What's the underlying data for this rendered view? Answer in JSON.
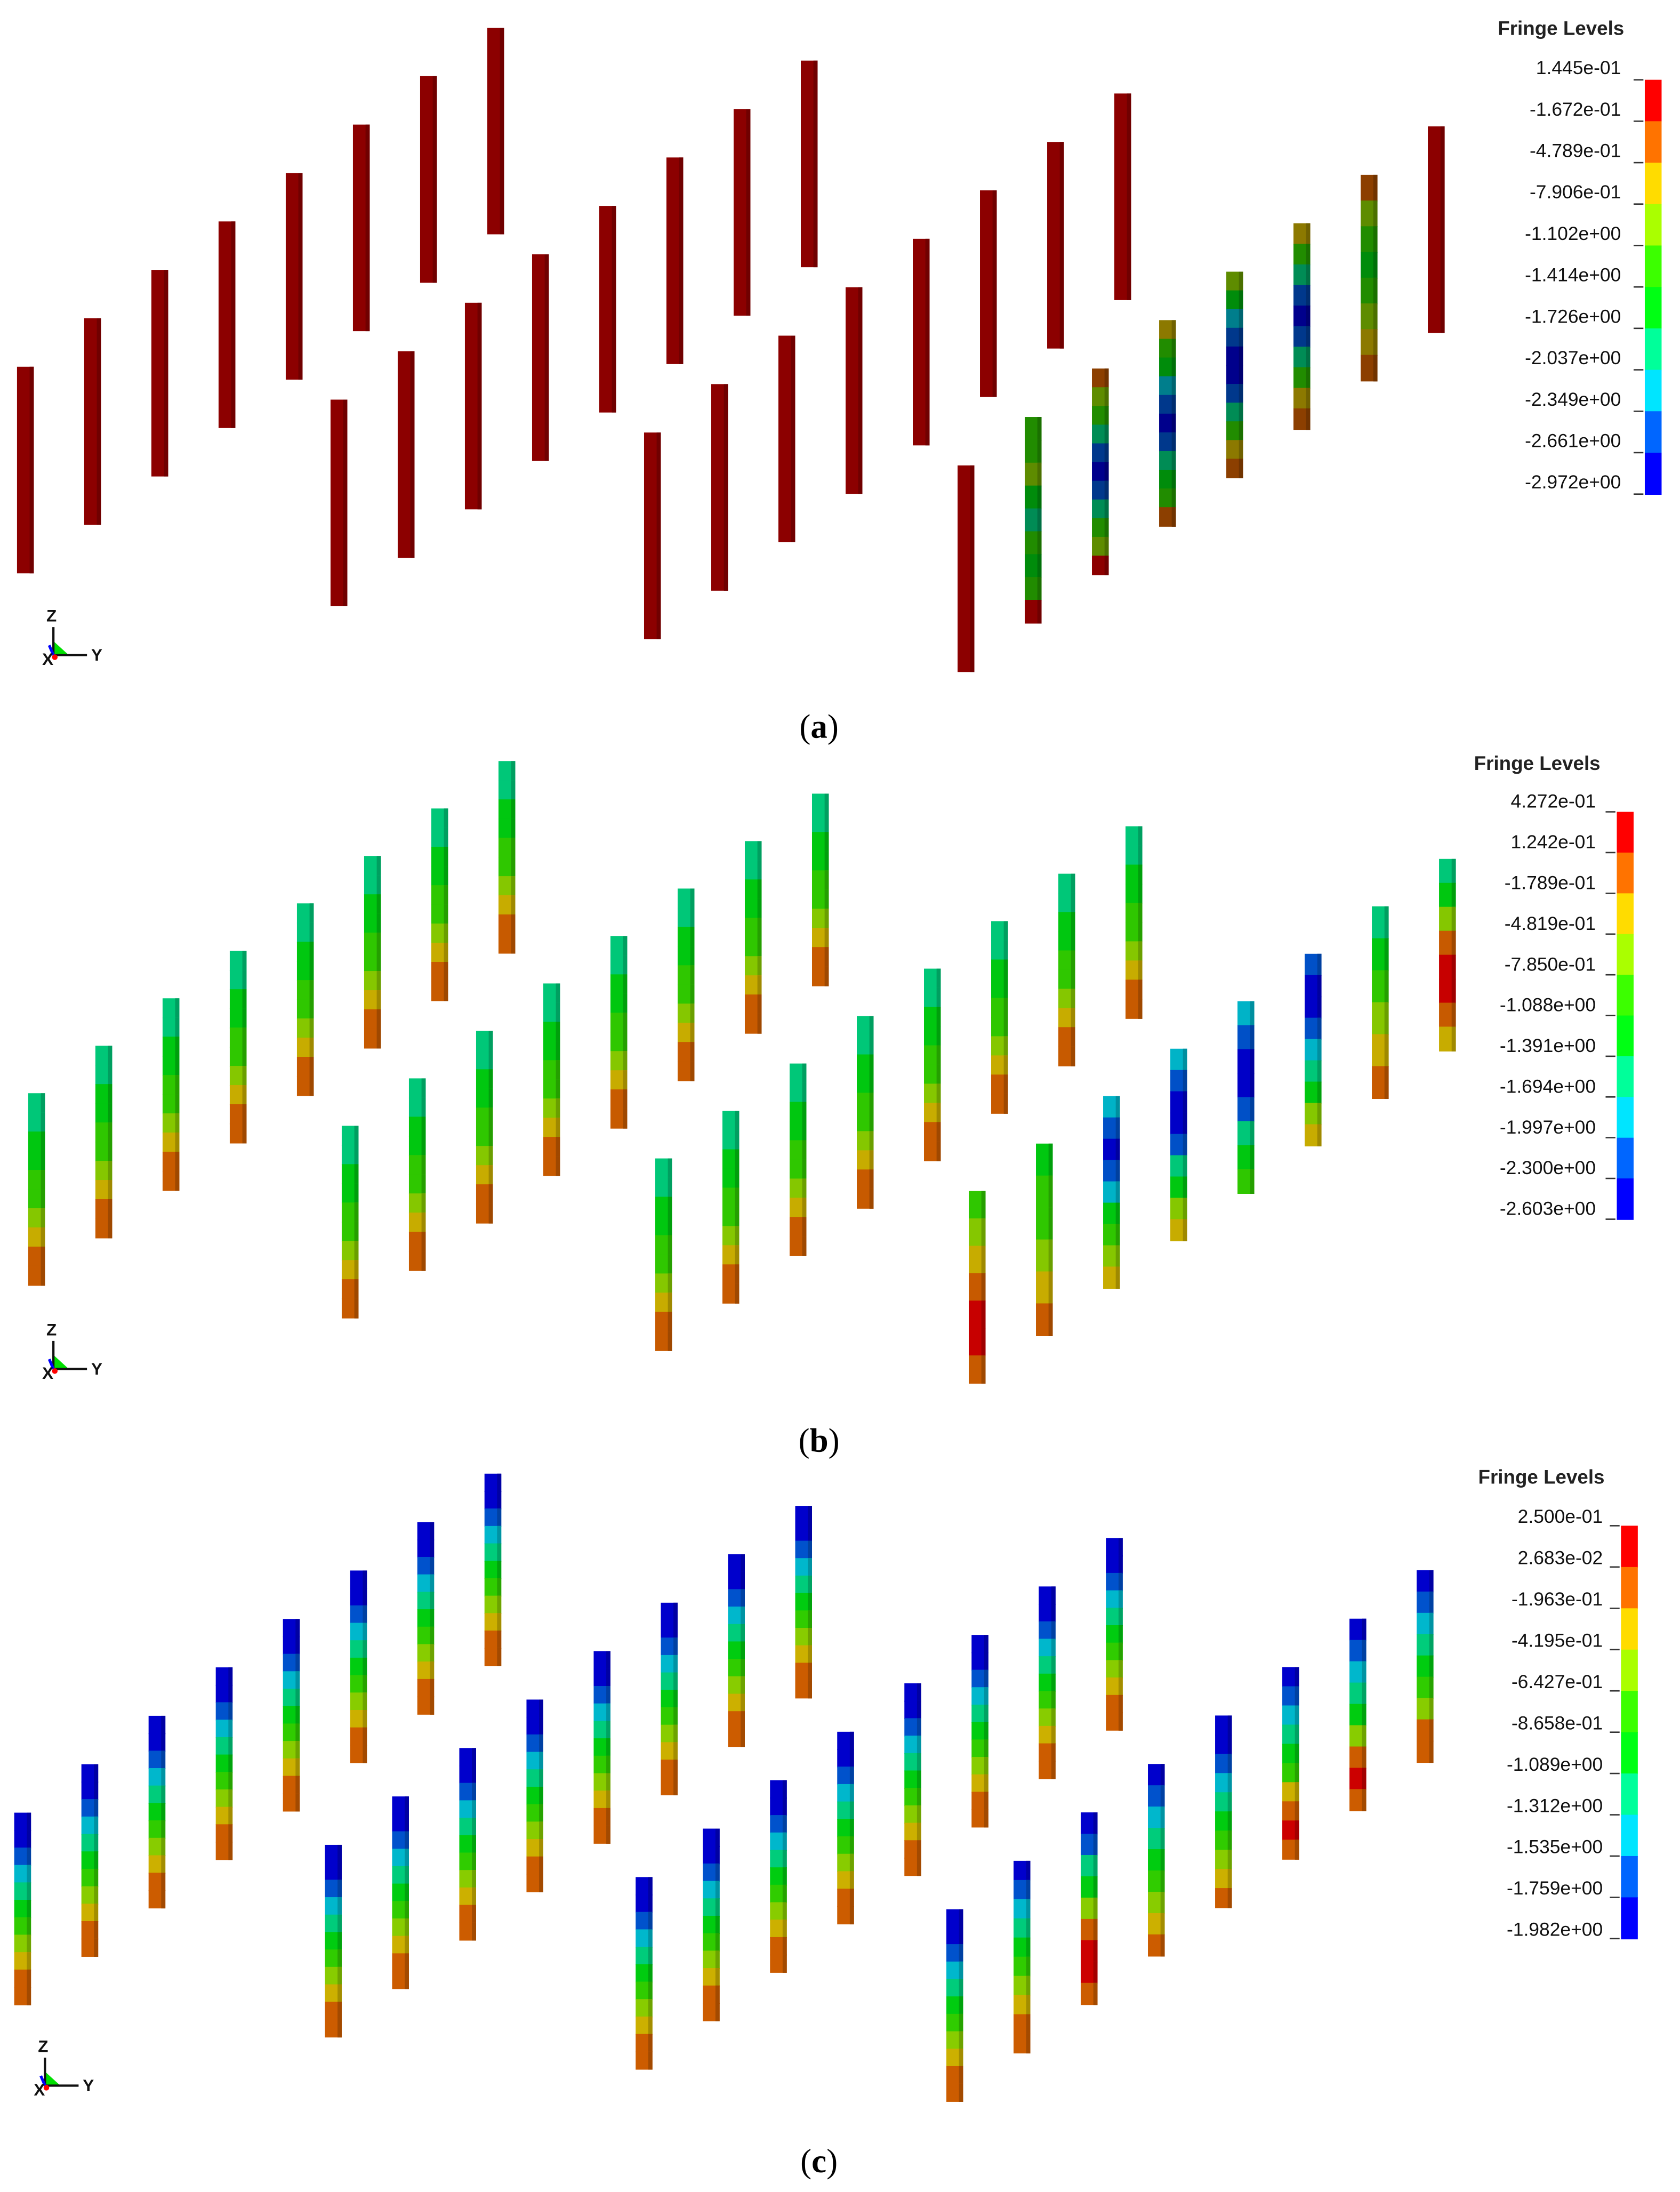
{
  "level_colors": [
    "#ff0000",
    "#ff7300",
    "#ffdc00",
    "#aaff00",
    "#3cff00",
    "#00ff14",
    "#00ff9a",
    "#00e5ff",
    "#0066ff",
    "#0000ff"
  ],
  "panels": [
    {
      "caption_open": "(",
      "caption_letter": "a",
      "caption_close": ")",
      "legend": {
        "title": "Fringe Levels",
        "levels": [
          "1.445e-01",
          "-1.672e-01",
          "-4.789e-01",
          "-7.906e-01",
          "-1.102e+00",
          "-1.414e+00",
          "-1.726e+00",
          "-2.037e+00",
          "-2.349e+00",
          "-2.661e+00",
          "-2.972e+00"
        ]
      },
      "axes": {
        "z": "Z",
        "y": "Y",
        "x": "X"
      },
      "default_profile": [
        0
      ],
      "rows": [
        [
          [
            0
          ],
          [
            0
          ],
          [
            0
          ],
          [
            0
          ],
          [
            0
          ],
          [
            0
          ],
          [
            0
          ],
          [
            0
          ]
        ],
        [
          [
            0
          ],
          [
            0
          ],
          [
            0
          ],
          [
            0
          ],
          [
            0
          ],
          [
            0
          ],
          [
            0
          ],
          [
            0
          ]
        ],
        [
          [
            0
          ],
          [
            0
          ],
          [
            0
          ],
          [
            0
          ],
          [
            0
          ],
          [
            0
          ],
          [
            0
          ],
          [
            0
          ]
        ],
        [
          [
            0
          ],
          [
            4,
            4,
            3,
            5,
            6,
            4,
            5,
            4,
            0
          ],
          [
            1,
            3,
            4,
            6,
            8,
            9,
            8,
            6,
            4,
            3,
            0
          ],
          [
            2,
            4,
            5,
            7,
            8,
            9,
            8,
            6,
            5,
            4,
            1
          ],
          [
            3,
            5,
            7,
            8,
            9,
            9,
            8,
            6,
            4,
            2,
            1
          ],
          [
            2,
            4,
            6,
            8,
            9,
            8,
            6,
            4,
            2,
            1
          ],
          [
            1,
            3,
            4,
            5,
            4,
            3,
            2,
            1
          ],
          [
            0
          ]
        ]
      ]
    },
    {
      "caption_open": "(",
      "caption_letter": "b",
      "caption_close": ")",
      "legend": {
        "title": "Fringe Levels",
        "levels": [
          "4.272e-01",
          "1.242e-01",
          "-1.789e-01",
          "-4.819e-01",
          "-7.850e-01",
          "-1.088e+00",
          "-1.391e+00",
          "-1.694e+00",
          "-1.997e+00",
          "-2.300e+00",
          "-2.603e+00"
        ]
      },
      "axes": {
        "z": "Z",
        "y": "Y",
        "x": "X"
      },
      "rows": [
        [
          [
            6,
            6,
            5,
            5,
            4,
            4,
            3,
            2,
            1,
            1
          ],
          [
            6,
            6,
            5,
            5,
            4,
            4,
            3,
            2,
            1,
            1
          ],
          [
            6,
            6,
            5,
            5,
            4,
            4,
            3,
            2,
            1,
            1
          ],
          [
            6,
            6,
            5,
            5,
            4,
            4,
            3,
            2,
            1,
            1
          ],
          [
            6,
            6,
            5,
            5,
            4,
            4,
            3,
            2,
            1,
            1
          ],
          [
            6,
            6,
            5,
            5,
            4,
            4,
            3,
            2,
            1,
            1
          ],
          [
            6,
            6,
            5,
            5,
            4,
            4,
            3,
            2,
            1,
            1
          ],
          [
            6,
            6,
            5,
            5,
            4,
            4,
            3,
            2,
            1,
            1
          ]
        ],
        [
          [
            6,
            6,
            5,
            5,
            4,
            4,
            3,
            2,
            1,
            1
          ],
          [
            6,
            6,
            5,
            5,
            4,
            4,
            3,
            2,
            1,
            1
          ],
          [
            6,
            6,
            5,
            5,
            4,
            4,
            3,
            2,
            1,
            1
          ],
          [
            6,
            6,
            5,
            5,
            4,
            4,
            3,
            2,
            1,
            1
          ],
          [
            6,
            6,
            5,
            5,
            4,
            4,
            3,
            2,
            1,
            1
          ],
          [
            6,
            6,
            5,
            5,
            4,
            4,
            3,
            2,
            1,
            1
          ],
          [
            6,
            6,
            5,
            5,
            4,
            4,
            3,
            2,
            1,
            1
          ],
          [
            6,
            6,
            5,
            5,
            4,
            4,
            3,
            2,
            1,
            1
          ]
        ],
        [
          [
            6,
            6,
            5,
            5,
            4,
            4,
            3,
            2,
            1,
            1
          ],
          [
            6,
            6,
            5,
            5,
            4,
            4,
            3,
            2,
            1,
            1
          ],
          [
            6,
            6,
            5,
            5,
            4,
            4,
            3,
            2,
            1,
            1
          ],
          [
            6,
            6,
            5,
            5,
            4,
            4,
            3,
            2,
            1,
            1
          ],
          [
            6,
            6,
            5,
            5,
            4,
            4,
            3,
            2,
            1,
            1
          ],
          [
            6,
            6,
            5,
            5,
            4,
            4,
            3,
            2,
            1,
            1
          ],
          [
            6,
            6,
            5,
            5,
            4,
            4,
            3,
            2,
            1,
            1
          ],
          [
            6,
            6,
            5,
            5,
            4,
            4,
            3,
            2,
            1,
            1
          ]
        ],
        [
          [
            4,
            3,
            2,
            1,
            0,
            0,
            1
          ],
          [
            5,
            4,
            4,
            3,
            2,
            1
          ],
          [
            7,
            8,
            9,
            8,
            7,
            5,
            4,
            3,
            2
          ],
          [
            7,
            8,
            9,
            9,
            8,
            6,
            5,
            3,
            2
          ],
          [
            7,
            8,
            9,
            9,
            8,
            6,
            5,
            4
          ],
          [
            8,
            9,
            9,
            8,
            7,
            6,
            5,
            3,
            2
          ],
          [
            6,
            5,
            4,
            3,
            2,
            1
          ],
          [
            6,
            5,
            3,
            1,
            0,
            0,
            1,
            2
          ]
        ]
      ]
    },
    {
      "caption_open": "(",
      "caption_letter": "c",
      "caption_close": ")",
      "legend": {
        "title": "Fringe Levels",
        "levels": [
          "2.500e-01",
          "2.683e-02",
          "-1.963e-01",
          "-4.195e-01",
          "-6.427e-01",
          "-8.658e-01",
          "-1.089e+00",
          "-1.312e+00",
          "-1.535e+00",
          "-1.759e+00",
          "-1.982e+00"
        ]
      },
      "axes": {
        "z": "Z",
        "y": "Y",
        "x": "X"
      },
      "rows": [
        [
          [
            9,
            9,
            8,
            7,
            6,
            5,
            4,
            3,
            2,
            1,
            1
          ],
          [
            9,
            9,
            8,
            7,
            6,
            5,
            4,
            3,
            2,
            1,
            1
          ],
          [
            9,
            9,
            8,
            7,
            6,
            5,
            4,
            3,
            2,
            1,
            1
          ],
          [
            9,
            9,
            8,
            7,
            6,
            5,
            4,
            3,
            2,
            1,
            1
          ],
          [
            9,
            9,
            8,
            7,
            6,
            5,
            4,
            3,
            2,
            1,
            1
          ],
          [
            9,
            9,
            8,
            7,
            6,
            5,
            4,
            3,
            2,
            1,
            1
          ],
          [
            9,
            9,
            8,
            7,
            6,
            5,
            4,
            3,
            2,
            1,
            1
          ],
          [
            9,
            9,
            8,
            7,
            6,
            5,
            4,
            3,
            2,
            1,
            1
          ]
        ],
        [
          [
            9,
            9,
            8,
            7,
            6,
            5,
            4,
            3,
            2,
            1,
            1
          ],
          [
            9,
            9,
            8,
            7,
            6,
            5,
            4,
            3,
            2,
            1,
            1
          ],
          [
            9,
            9,
            8,
            7,
            6,
            5,
            4,
            3,
            2,
            1,
            1
          ],
          [
            9,
            9,
            8,
            7,
            6,
            5,
            4,
            3,
            2,
            1,
            1
          ],
          [
            9,
            9,
            8,
            7,
            6,
            5,
            4,
            3,
            2,
            1,
            1
          ],
          [
            9,
            9,
            8,
            7,
            6,
            5,
            4,
            3,
            2,
            1,
            1
          ],
          [
            9,
            9,
            8,
            7,
            6,
            5,
            4,
            3,
            2,
            1,
            1
          ],
          [
            9,
            9,
            8,
            7,
            6,
            5,
            4,
            3,
            2,
            1,
            1
          ]
        ],
        [
          [
            9,
            9,
            8,
            7,
            6,
            5,
            4,
            3,
            2,
            1,
            1
          ],
          [
            9,
            9,
            8,
            7,
            6,
            5,
            4,
            3,
            2,
            1,
            1
          ],
          [
            9,
            9,
            8,
            7,
            6,
            5,
            4,
            3,
            2,
            1,
            1
          ],
          [
            9,
            9,
            8,
            7,
            6,
            5,
            4,
            3,
            2,
            1,
            1
          ],
          [
            9,
            9,
            8,
            7,
            6,
            5,
            4,
            3,
            2,
            1,
            1
          ],
          [
            9,
            9,
            8,
            7,
            6,
            5,
            4,
            3,
            2,
            1,
            1
          ],
          [
            9,
            9,
            8,
            7,
            6,
            5,
            4,
            3,
            2,
            1,
            1
          ],
          [
            9,
            9,
            8,
            7,
            6,
            5,
            4,
            3,
            2,
            1,
            1
          ]
        ],
        [
          [
            9,
            9,
            8,
            7,
            6,
            5,
            4,
            3,
            2,
            1,
            1
          ],
          [
            9,
            8,
            7,
            6,
            5,
            4,
            3,
            2,
            1,
            1
          ],
          [
            9,
            8,
            6,
            5,
            3,
            1,
            0,
            0,
            1
          ],
          [
            9,
            8,
            7,
            6,
            5,
            4,
            3,
            2,
            1
          ],
          [
            9,
            9,
            8,
            7,
            6,
            5,
            4,
            3,
            2,
            1
          ],
          [
            9,
            8,
            7,
            6,
            5,
            4,
            2,
            1,
            0,
            1
          ],
          [
            9,
            8,
            7,
            6,
            5,
            3,
            1,
            0,
            1
          ],
          [
            9,
            8,
            7,
            6,
            5,
            4,
            3,
            1,
            1
          ]
        ]
      ]
    }
  ]
}
